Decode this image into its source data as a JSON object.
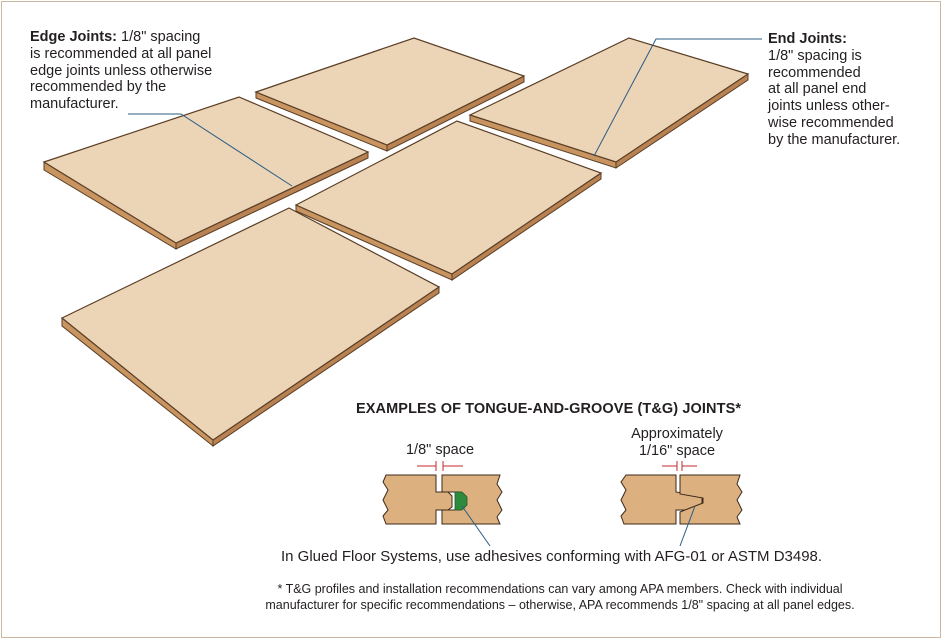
{
  "edge_joints": {
    "heading": "Edge Joints:",
    "lines": [
      "1/8\" spacing",
      "is recommended at all panel",
      "edge joints unless otherwise",
      "recommended by the",
      "manufacturer."
    ]
  },
  "end_joints": {
    "heading": "End Joints:",
    "lines": [
      "1/8\" spacing is",
      "recommended",
      "at all panel end",
      "joints unless other-",
      "wise recommended",
      "by the manufacturer."
    ]
  },
  "tg_title": "EXAMPLES OF TONGUE-AND-GROOVE (T&G) JOINTS*",
  "left_space_label": "1/8\" space",
  "right_space_label_1": "Approximately",
  "right_space_label_2": "1/16\" space",
  "glue_note": "In Glued Floor Systems, use adhesives conforming with AFG-01 or ASTM D3498.",
  "footnote_1": "* T&G profiles and installation recommendations can vary among APA members. Check with individual",
  "footnote_2": "manufacturer for specific recommendations – otherwise, APA recommends 1/8\" spacing at all panel edges.",
  "colors": {
    "panel_top": "#ecd5b6",
    "panel_edge": "#c8945f",
    "panel_outline": "#5a3e26",
    "wood_profile": "#dcb07f",
    "adhesive": "#2e8b3e",
    "leader_line": "#2b5c86",
    "frame_border": "#c9b7a0"
  }
}
